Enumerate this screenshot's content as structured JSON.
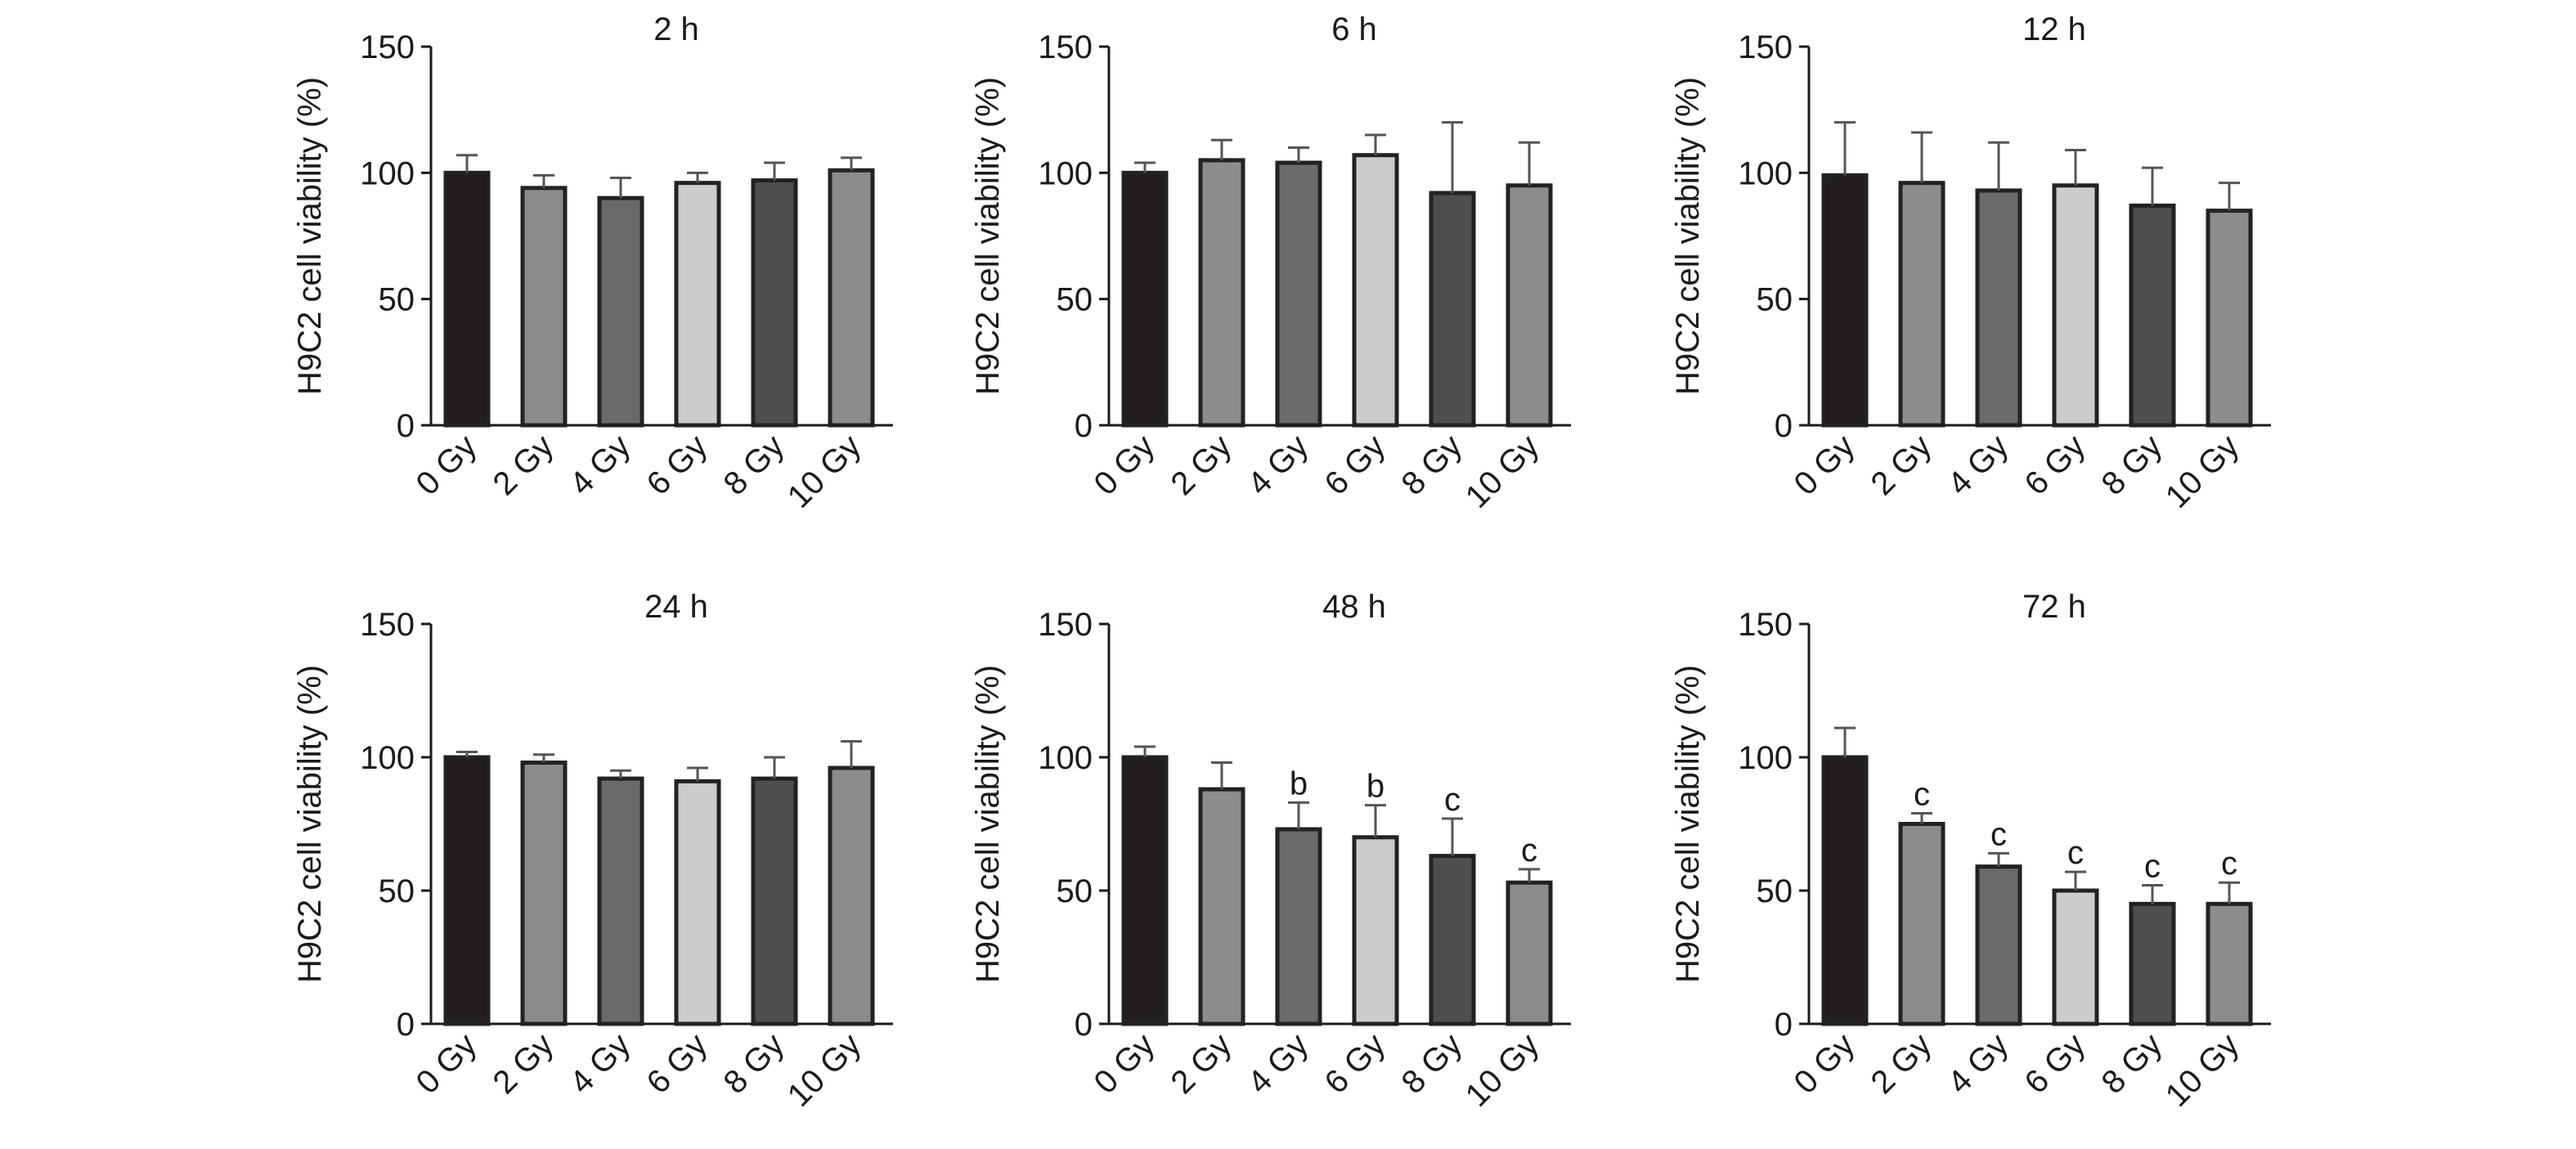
{
  "chart_data": [
    {
      "type": "bar",
      "title": "2 h",
      "ylabel": "H9C2 cell viability (%)",
      "ylim": [
        0,
        150
      ],
      "yticks": [
        0,
        50,
        100,
        150
      ],
      "categories": [
        "0 Gy",
        "2 Gy",
        "4 Gy",
        "6 Gy",
        "8 Gy",
        "10 Gy"
      ],
      "values": [
        100,
        94,
        90,
        96,
        97,
        101
      ],
      "errors": [
        7,
        5,
        8,
        4,
        7,
        5
      ],
      "annotations": [
        "",
        "",
        "",
        "",
        "",
        ""
      ],
      "bar_colors": [
        "#231f20",
        "#8c8c8c",
        "#6a6a6a",
        "#cccccc",
        "#4f4f4f",
        "#8c8c8c"
      ]
    },
    {
      "type": "bar",
      "title": "6 h",
      "ylabel": "H9C2 cell viability (%)",
      "ylim": [
        0,
        150
      ],
      "yticks": [
        0,
        50,
        100,
        150
      ],
      "categories": [
        "0 Gy",
        "2 Gy",
        "4 Gy",
        "6 Gy",
        "8 Gy",
        "10 Gy"
      ],
      "values": [
        100,
        105,
        104,
        107,
        92,
        95
      ],
      "errors": [
        4,
        8,
        6,
        8,
        28,
        17
      ],
      "annotations": [
        "",
        "",
        "",
        "",
        "",
        ""
      ],
      "bar_colors": [
        "#231f20",
        "#8c8c8c",
        "#6a6a6a",
        "#cccccc",
        "#4f4f4f",
        "#8c8c8c"
      ]
    },
    {
      "type": "bar",
      "title": "12 h",
      "ylabel": "H9C2 cell viability (%)",
      "ylim": [
        0,
        150
      ],
      "yticks": [
        0,
        50,
        100,
        150
      ],
      "categories": [
        "0 Gy",
        "2 Gy",
        "4 Gy",
        "6 Gy",
        "8 Gy",
        "10 Gy"
      ],
      "values": [
        99,
        96,
        93,
        95,
        87,
        85
      ],
      "errors": [
        21,
        20,
        19,
        14,
        15,
        11
      ],
      "annotations": [
        "",
        "",
        "",
        "",
        "",
        ""
      ],
      "bar_colors": [
        "#231f20",
        "#8c8c8c",
        "#6a6a6a",
        "#cccccc",
        "#4f4f4f",
        "#8c8c8c"
      ]
    },
    {
      "type": "bar",
      "title": "24 h",
      "ylabel": "H9C2 cell viability (%)",
      "ylim": [
        0,
        150
      ],
      "yticks": [
        0,
        50,
        100,
        150
      ],
      "categories": [
        "0 Gy",
        "2 Gy",
        "4 Gy",
        "6 Gy",
        "8 Gy",
        "10 Gy"
      ],
      "values": [
        100,
        98,
        92,
        91,
        92,
        96
      ],
      "errors": [
        2,
        3,
        3,
        5,
        8,
        10
      ],
      "annotations": [
        "",
        "",
        "",
        "",
        "",
        ""
      ],
      "bar_colors": [
        "#231f20",
        "#8c8c8c",
        "#6a6a6a",
        "#cccccc",
        "#4f4f4f",
        "#8c8c8c"
      ]
    },
    {
      "type": "bar",
      "title": "48 h",
      "ylabel": "H9C2 cell viability (%)",
      "ylim": [
        0,
        150
      ],
      "yticks": [
        0,
        50,
        100,
        150
      ],
      "categories": [
        "0 Gy",
        "2 Gy",
        "4 Gy",
        "6 Gy",
        "8 Gy",
        "10 Gy"
      ],
      "values": [
        100,
        88,
        73,
        70,
        63,
        53
      ],
      "errors": [
        4,
        10,
        10,
        12,
        14,
        5
      ],
      "annotations": [
        "",
        "",
        "b",
        "b",
        "c",
        "c"
      ],
      "bar_colors": [
        "#231f20",
        "#8c8c8c",
        "#6a6a6a",
        "#cccccc",
        "#4f4f4f",
        "#8c8c8c"
      ]
    },
    {
      "type": "bar",
      "title": "72 h",
      "ylabel": "H9C2 cell viability (%)",
      "ylim": [
        0,
        150
      ],
      "yticks": [
        0,
        50,
        100,
        150
      ],
      "categories": [
        "0 Gy",
        "2 Gy",
        "4 Gy",
        "6 Gy",
        "8 Gy",
        "10 Gy"
      ],
      "values": [
        100,
        75,
        59,
        50,
        45,
        45
      ],
      "errors": [
        11,
        4,
        5,
        7,
        7,
        8
      ],
      "annotations": [
        "",
        "c",
        "c",
        "c",
        "c",
        "c"
      ],
      "bar_colors": [
        "#231f20",
        "#8c8c8c",
        "#6a6a6a",
        "#cccccc",
        "#4f4f4f",
        "#8c8c8c"
      ]
    }
  ]
}
